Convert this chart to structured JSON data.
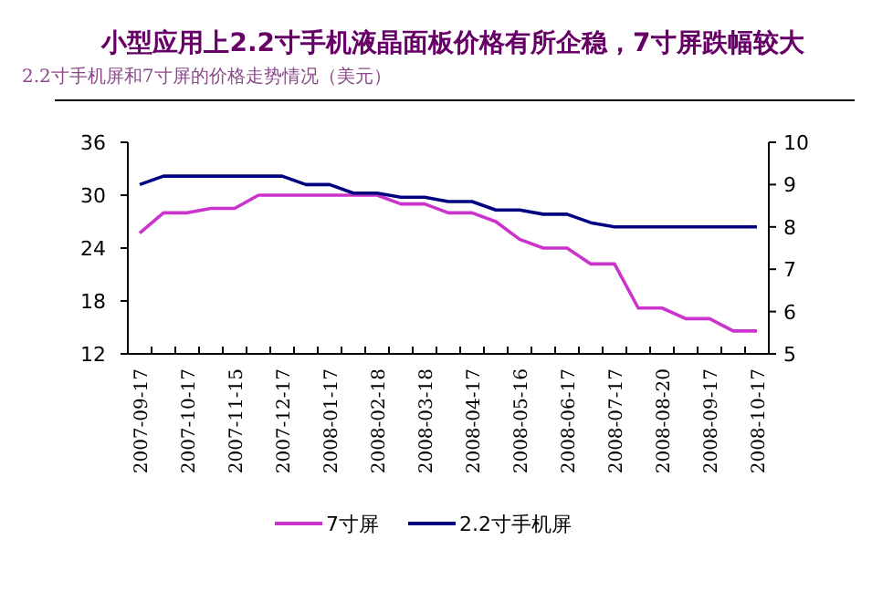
{
  "chart_data": {
    "type": "line",
    "title": "小型应用上2.2寸手机液晶面板价格有所企稳，7寸屏跌幅较大",
    "subtitle": "2.2寸手机屏和7寸屏的价格走势情况（美元）",
    "categories": [
      "2007-09-17",
      null,
      "2007-10-17",
      null,
      "2007-11-15",
      null,
      "2007-12-17",
      null,
      "2008-01-17",
      null,
      "2008-02-18",
      null,
      "2008-03-18",
      null,
      "2008-04-17",
      null,
      "2008-05-16",
      null,
      "2008-06-17",
      null,
      "2008-07-17",
      null,
      "2008-08-20",
      null,
      "2008-09-17",
      null,
      "2008-10-17"
    ],
    "series": [
      {
        "name": "7寸屏",
        "color": "#cc33cc",
        "values": [
          25.7,
          28,
          28,
          28.5,
          28.5,
          30,
          30,
          30,
          30,
          30,
          30,
          29,
          29,
          28,
          28,
          27,
          25,
          24,
          24,
          22.2,
          22.2,
          17.2,
          17.2,
          16,
          16,
          14.6,
          14.6
        ]
      },
      {
        "name": "2.2寸手机屏",
        "color": "#000080",
        "axis": "y2",
        "values": [
          9,
          9.2,
          9.2,
          9.2,
          9.2,
          9.2,
          9.2,
          9,
          9,
          8.8,
          8.8,
          8.7,
          8.7,
          8.6,
          8.6,
          8.4,
          8.4,
          8.3,
          8.3,
          8.1,
          8,
          8,
          8,
          8,
          8,
          8,
          8
        ]
      }
    ],
    "ylim": [
      12,
      36
    ],
    "yticks": [
      12,
      18,
      24,
      30,
      36
    ],
    "y2lim": [
      5,
      10
    ],
    "y2ticks": [
      5,
      6,
      7,
      8,
      9,
      10
    ],
    "grid": false,
    "legend": "bottom",
    "marker": "none",
    "line_style": "solid"
  }
}
